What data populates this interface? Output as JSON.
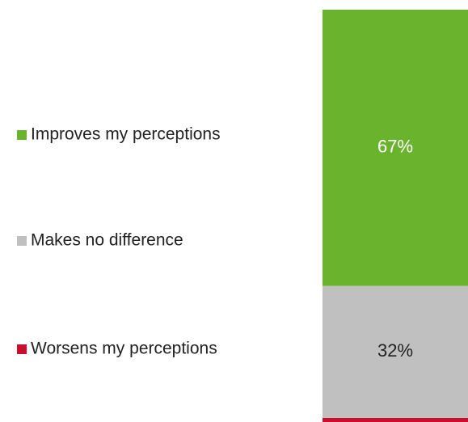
{
  "chart_data": {
    "type": "stacked_bar",
    "series": [
      {
        "name": "Improves my perceptions",
        "color": "#6ab42d",
        "values": [
          67
        ],
        "value_labels": [
          "67%"
        ]
      },
      {
        "name": "Makes no difference",
        "color": "#c0c0c0",
        "values": [
          32
        ],
        "value_labels": [
          "32%"
        ]
      },
      {
        "name": "Worsens my perceptions",
        "color": "#c8102e",
        "values": [
          1
        ],
        "value_labels": [
          null
        ]
      }
    ],
    "ylim": [
      0,
      100
    ]
  }
}
